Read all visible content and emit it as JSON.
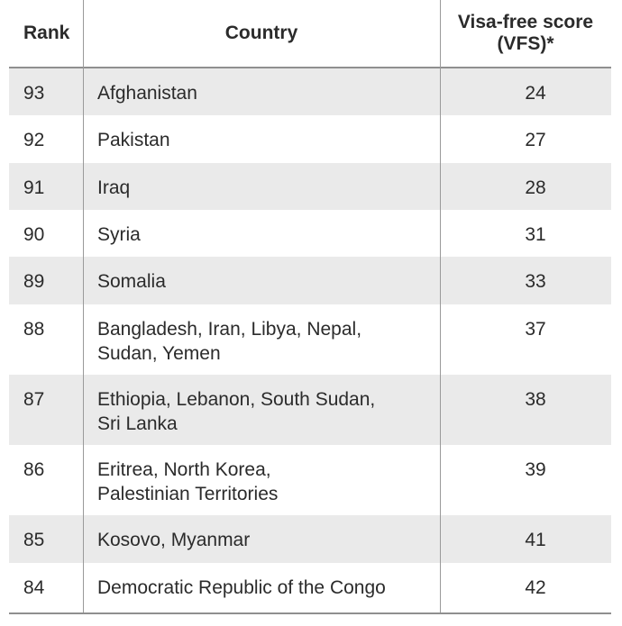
{
  "table": {
    "headers": {
      "rank": "Rank",
      "country": "Country",
      "score_line1": "Visa-free score",
      "score_line2": "(VFS)*"
    },
    "rows": [
      {
        "rank": "93",
        "country_line1": "Afghanistan",
        "country_line2": "",
        "score": "24"
      },
      {
        "rank": "92",
        "country_line1": "Pakistan",
        "country_line2": "",
        "score": "27"
      },
      {
        "rank": "91",
        "country_line1": "Iraq",
        "country_line2": "",
        "score": "28"
      },
      {
        "rank": "90",
        "country_line1": "Syria",
        "country_line2": "",
        "score": "31"
      },
      {
        "rank": "89",
        "country_line1": "Somalia",
        "country_line2": "",
        "score": "33"
      },
      {
        "rank": "88",
        "country_line1": "Bangladesh, Iran, Libya, Nepal,",
        "country_line2": "Sudan, Yemen",
        "score": "37"
      },
      {
        "rank": "87",
        "country_line1": "Ethiopia, Lebanon, South Sudan,",
        "country_line2": "Sri Lanka",
        "score": "38"
      },
      {
        "rank": "86",
        "country_line1": "Eritrea, North Korea,",
        "country_line2": "Palestinian Territories",
        "score": "39"
      },
      {
        "rank": "85",
        "country_line1": "Kosovo, Myanmar",
        "country_line2": "",
        "score": "41"
      },
      {
        "rank": "84",
        "country_line1": "Democratic Republic of the Congo",
        "country_line2": "",
        "score": "42"
      }
    ]
  },
  "colors": {
    "row_shade": "#eaeaea",
    "rule": "#8f8f8f",
    "text": "#2b2b2b"
  }
}
